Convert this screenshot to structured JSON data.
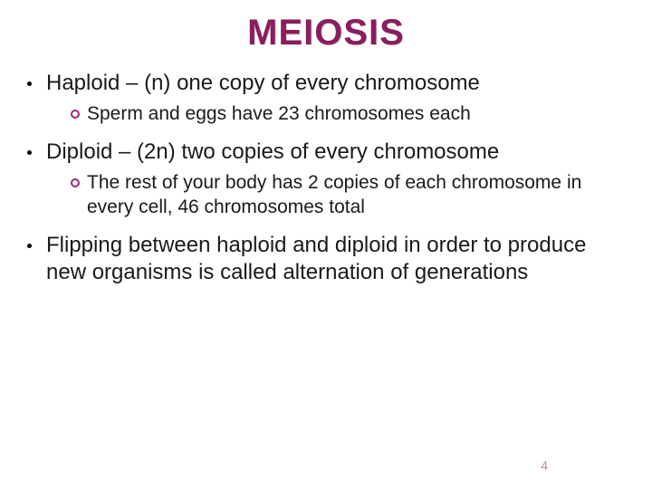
{
  "title": "MEIOSIS",
  "title_color": "#8a1d5e",
  "ring_color": "#9e2b72",
  "page_number": "4",
  "page_num_color": "#c08aa8",
  "bullets": {
    "b1": {
      "text": "Haploid – (n) one copy of every chromosome",
      "sub": "Sperm and eggs have 23 chromosomes each"
    },
    "b2": {
      "text": "Diploid – (2n) two copies of every chromosome",
      "sub": "The rest of your body has 2 copies of each chromosome in every cell, 46 chromosomes total"
    },
    "b3": {
      "text": "Flipping between haploid and diploid in order to produce new organisms is called alternation of generations"
    }
  }
}
